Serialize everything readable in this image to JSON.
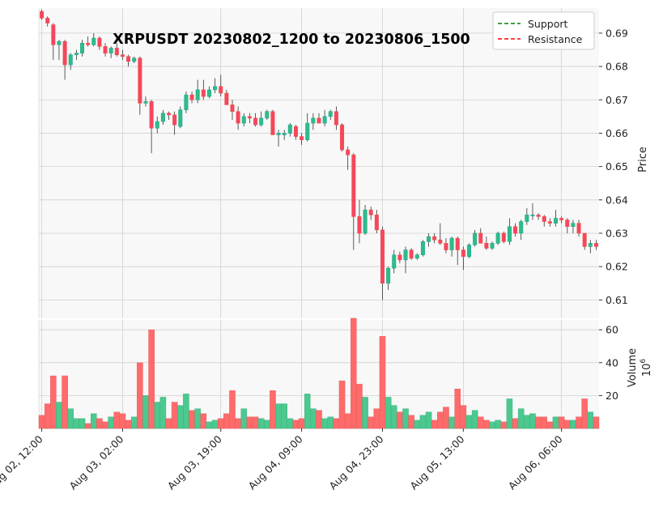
{
  "chart_data": {
    "type": "candlestick",
    "title": "XRPUSDT 20230802_1200 to 20230806_1500",
    "symbol": "XRPUSDT",
    "interval_hours": 1,
    "legend": {
      "placement": "top-right",
      "entries": [
        {
          "label": "Support",
          "color": "#008000",
          "style": "dashed"
        },
        {
          "label": "Resistance",
          "color": "#ff0000",
          "style": "dashed"
        }
      ]
    },
    "colors": {
      "up": "#26a69a",
      "up_fill": "#2ebd85",
      "down": "#ef5350",
      "down_fill": "#f6465d",
      "volume_up": "#4bc98f",
      "volume_down": "#ff6b6b",
      "panel_bg": "#f8f8f8",
      "grid": "#d0d0d0"
    },
    "price_axis": {
      "label": "Price",
      "side": "right",
      "ylim": [
        0.6045,
        0.6975
      ],
      "ticks": [
        0.61,
        0.62,
        0.63,
        0.64,
        0.65,
        0.66,
        0.67,
        0.68,
        0.69
      ]
    },
    "volume_axis": {
      "label": "Volume",
      "multiplier_label": "10",
      "multiplier_exp": "6",
      "side": "right",
      "ylim": [
        0,
        66
      ],
      "ticks": [
        20,
        40,
        60
      ]
    },
    "x_tick_labels": [
      {
        "index": 0,
        "label": "Aug 02, 12:00"
      },
      {
        "index": 14,
        "label": "Aug 03, 02:00"
      },
      {
        "index": 31,
        "label": "Aug 03, 19:00"
      },
      {
        "index": 45,
        "label": "Aug 04, 09:00"
      },
      {
        "index": 59,
        "label": "Aug 04, 23:00"
      },
      {
        "index": 73,
        "label": "Aug 05, 13:00"
      },
      {
        "index": 90,
        "label": "Aug 06, 06:00"
      }
    ],
    "candles": [
      [
        0.6965,
        0.697,
        0.694,
        0.6945,
        8
      ],
      [
        0.6945,
        0.695,
        0.692,
        0.693,
        15
      ],
      [
        0.6925,
        0.693,
        0.682,
        0.6865,
        32
      ],
      [
        0.6865,
        0.688,
        0.682,
        0.6875,
        16
      ],
      [
        0.6875,
        0.688,
        0.676,
        0.6805,
        32
      ],
      [
        0.6805,
        0.684,
        0.679,
        0.6835,
        12
      ],
      [
        0.6835,
        0.685,
        0.682,
        0.684,
        6
      ],
      [
        0.684,
        0.688,
        0.683,
        0.687,
        6
      ],
      [
        0.687,
        0.689,
        0.686,
        0.6865,
        3
      ],
      [
        0.6865,
        0.69,
        0.686,
        0.6885,
        9
      ],
      [
        0.6885,
        0.689,
        0.685,
        0.686,
        6
      ],
      [
        0.686,
        0.687,
        0.683,
        0.684,
        4
      ],
      [
        0.684,
        0.686,
        0.6825,
        0.6855,
        7
      ],
      [
        0.6855,
        0.687,
        0.683,
        0.6835,
        10
      ],
      [
        0.6835,
        0.685,
        0.682,
        0.683,
        9
      ],
      [
        0.683,
        0.6835,
        0.68,
        0.6815,
        5
      ],
      [
        0.6815,
        0.683,
        0.681,
        0.6825,
        7
      ],
      [
        0.6825,
        0.683,
        0.6655,
        0.669,
        40
      ],
      [
        0.669,
        0.671,
        0.668,
        0.6695,
        20
      ],
      [
        0.6695,
        0.67,
        0.654,
        0.6615,
        60
      ],
      [
        0.6615,
        0.665,
        0.66,
        0.6635,
        16
      ],
      [
        0.6635,
        0.667,
        0.6625,
        0.666,
        19
      ],
      [
        0.666,
        0.6665,
        0.664,
        0.6655,
        6
      ],
      [
        0.6655,
        0.6665,
        0.6595,
        0.6625,
        16
      ],
      [
        0.662,
        0.668,
        0.6615,
        0.667,
        14
      ],
      [
        0.667,
        0.6725,
        0.666,
        0.6715,
        21
      ],
      [
        0.6715,
        0.6725,
        0.669,
        0.67,
        11
      ],
      [
        0.67,
        0.676,
        0.669,
        0.673,
        12
      ],
      [
        0.673,
        0.676,
        0.67,
        0.671,
        9
      ],
      [
        0.671,
        0.674,
        0.6705,
        0.673,
        4
      ],
      [
        0.673,
        0.6765,
        0.672,
        0.674,
        5
      ],
      [
        0.674,
        0.6775,
        0.671,
        0.672,
        6
      ],
      [
        0.672,
        0.673,
        0.669,
        0.6685,
        9
      ],
      [
        0.6685,
        0.67,
        0.664,
        0.6665,
        23
      ],
      [
        0.6665,
        0.668,
        0.661,
        0.663,
        6
      ],
      [
        0.663,
        0.666,
        0.662,
        0.665,
        12
      ],
      [
        0.665,
        0.666,
        0.663,
        0.6645,
        7
      ],
      [
        0.6645,
        0.666,
        0.662,
        0.6625,
        7
      ],
      [
        0.6625,
        0.6665,
        0.662,
        0.6645,
        6
      ],
      [
        0.6645,
        0.667,
        0.664,
        0.6665,
        5
      ],
      [
        0.6665,
        0.667,
        0.66,
        0.6595,
        23
      ],
      [
        0.6595,
        0.661,
        0.656,
        0.66,
        15
      ],
      [
        0.6595,
        0.661,
        0.658,
        0.66,
        15
      ],
      [
        0.66,
        0.663,
        0.659,
        0.6625,
        6
      ],
      [
        0.662,
        0.6625,
        0.658,
        0.659,
        5
      ],
      [
        0.659,
        0.66,
        0.6565,
        0.658,
        6
      ],
      [
        0.658,
        0.666,
        0.6575,
        0.663,
        21
      ],
      [
        0.663,
        0.666,
        0.661,
        0.6645,
        12
      ],
      [
        0.6645,
        0.666,
        0.663,
        0.663,
        11
      ],
      [
        0.663,
        0.667,
        0.662,
        0.665,
        6
      ],
      [
        0.665,
        0.667,
        0.664,
        0.6665,
        7
      ],
      [
        0.6665,
        0.668,
        0.661,
        0.6625,
        6
      ],
      [
        0.6625,
        0.663,
        0.6545,
        0.655,
        29
      ],
      [
        0.655,
        0.656,
        0.649,
        0.6535,
        9
      ],
      [
        0.6535,
        0.654,
        0.625,
        0.635,
        67
      ],
      [
        0.635,
        0.64,
        0.627,
        0.63,
        27
      ],
      [
        0.63,
        0.6385,
        0.6295,
        0.637,
        19
      ],
      [
        0.637,
        0.638,
        0.634,
        0.6355,
        7
      ],
      [
        0.6355,
        0.637,
        0.63,
        0.631,
        12
      ],
      [
        0.631,
        0.632,
        0.61,
        0.615,
        56
      ],
      [
        0.615,
        0.62,
        0.613,
        0.6195,
        19
      ],
      [
        0.6195,
        0.625,
        0.618,
        0.6235,
        14
      ],
      [
        0.6235,
        0.6245,
        0.621,
        0.622,
        10
      ],
      [
        0.622,
        0.626,
        0.618,
        0.625,
        12
      ],
      [
        0.625,
        0.6255,
        0.622,
        0.6225,
        8
      ],
      [
        0.6225,
        0.624,
        0.622,
        0.6235,
        5
      ],
      [
        0.6235,
        0.628,
        0.623,
        0.6275,
        8
      ],
      [
        0.6275,
        0.63,
        0.626,
        0.629,
        10
      ],
      [
        0.629,
        0.63,
        0.627,
        0.628,
        5
      ],
      [
        0.628,
        0.633,
        0.6265,
        0.627,
        10
      ],
      [
        0.627,
        0.6285,
        0.624,
        0.625,
        13
      ],
      [
        0.625,
        0.629,
        0.623,
        0.6285,
        7
      ],
      [
        0.6285,
        0.629,
        0.6205,
        0.625,
        24
      ],
      [
        0.625,
        0.626,
        0.619,
        0.623,
        14
      ],
      [
        0.623,
        0.627,
        0.6225,
        0.6265,
        8
      ],
      [
        0.6265,
        0.631,
        0.626,
        0.63,
        11
      ],
      [
        0.63,
        0.6315,
        0.627,
        0.627,
        7
      ],
      [
        0.627,
        0.629,
        0.625,
        0.6255,
        5
      ],
      [
        0.6255,
        0.6275,
        0.625,
        0.627,
        4
      ],
      [
        0.627,
        0.6305,
        0.6265,
        0.63,
        5
      ],
      [
        0.63,
        0.6305,
        0.627,
        0.6275,
        4
      ],
      [
        0.6275,
        0.6345,
        0.6265,
        0.632,
        18
      ],
      [
        0.632,
        0.633,
        0.629,
        0.63,
        6
      ],
      [
        0.63,
        0.634,
        0.628,
        0.6335,
        12
      ],
      [
        0.6335,
        0.6375,
        0.6325,
        0.6355,
        8
      ],
      [
        0.6355,
        0.639,
        0.634,
        0.6355,
        9
      ],
      [
        0.6355,
        0.636,
        0.634,
        0.635,
        7
      ],
      [
        0.635,
        0.6355,
        0.632,
        0.6335,
        7
      ],
      [
        0.6335,
        0.6345,
        0.632,
        0.633,
        4
      ],
      [
        0.633,
        0.637,
        0.632,
        0.6345,
        7
      ],
      [
        0.6345,
        0.635,
        0.633,
        0.634,
        7
      ],
      [
        0.634,
        0.6345,
        0.63,
        0.632,
        5
      ],
      [
        0.632,
        0.634,
        0.63,
        0.633,
        5
      ],
      [
        0.633,
        0.634,
        0.629,
        0.63,
        7
      ],
      [
        0.63,
        0.63,
        0.625,
        0.626,
        18
      ],
      [
        0.626,
        0.628,
        0.624,
        0.627,
        10
      ],
      [
        0.627,
        0.628,
        0.625,
        0.626,
        7
      ]
    ]
  }
}
